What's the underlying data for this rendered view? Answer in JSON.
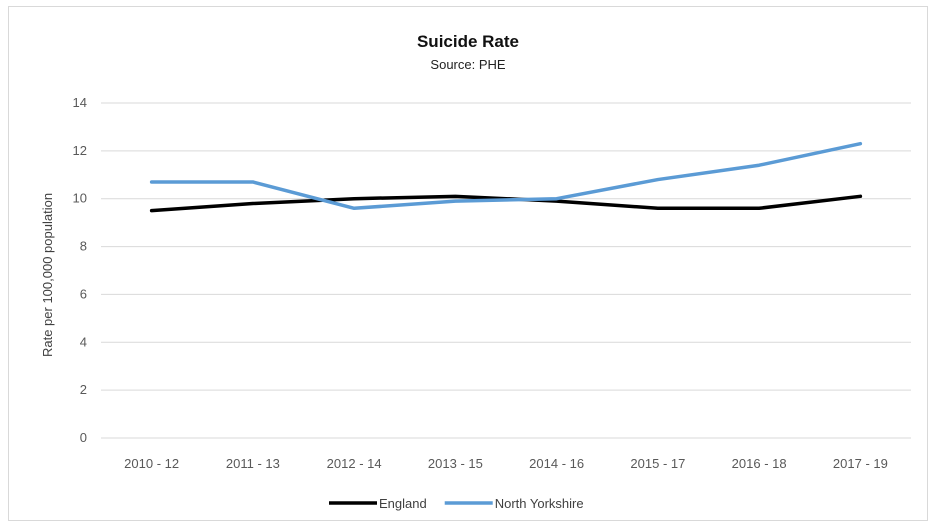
{
  "chart_data": {
    "type": "line",
    "title": "Suicide Rate",
    "subtitle": "Source: PHE",
    "xlabel": "",
    "ylabel": "Rate per 100,000 population",
    "ylim": [
      0,
      14
    ],
    "yticks": [
      0,
      2,
      4,
      6,
      8,
      10,
      12,
      14
    ],
    "grid": true,
    "legend_position": "bottom",
    "categories": [
      "2010 - 12",
      "2011 - 13",
      "2012 - 14",
      "2013 - 15",
      "2014 - 16",
      "2015 - 17",
      "2016 - 18",
      "2017 - 19"
    ],
    "series": [
      {
        "name": "England",
        "color": "#000000",
        "values": [
          9.5,
          9.8,
          10.0,
          10.1,
          9.9,
          9.6,
          9.6,
          10.1
        ]
      },
      {
        "name": "North Yorkshire",
        "color": "#5b9bd5",
        "values": [
          10.7,
          10.7,
          9.6,
          9.9,
          10.0,
          10.8,
          11.4,
          12.3
        ]
      }
    ]
  }
}
